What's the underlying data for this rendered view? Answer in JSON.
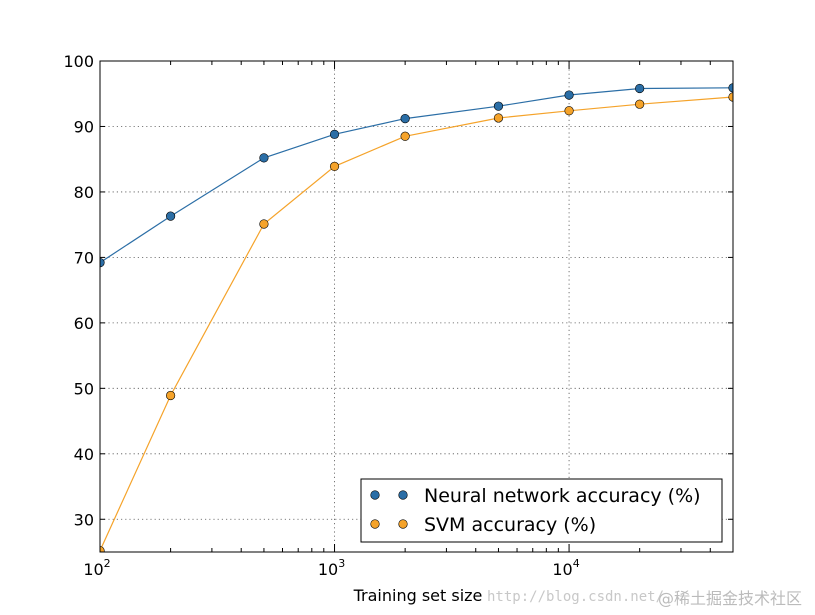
{
  "chart_data": {
    "type": "line",
    "title": "",
    "xlabel": "Training set size",
    "ylabel": "",
    "xscale": "log",
    "xlim": [
      100,
      50000
    ],
    "ylim": [
      25,
      100
    ],
    "x": [
      100,
      200,
      500,
      1000,
      2000,
      5000,
      10000,
      20000,
      50000
    ],
    "xticks": [
      {
        "value": 100,
        "base": "10",
        "exp": "2"
      },
      {
        "value": 1000,
        "base": "10",
        "exp": "3"
      },
      {
        "value": 10000,
        "base": "10",
        "exp": "4"
      }
    ],
    "yticks": [
      30,
      40,
      50,
      60,
      70,
      80,
      90,
      100
    ],
    "grid": true,
    "legend_position": "bottom-right",
    "series": [
      {
        "name": "Neural network accuracy (%)",
        "color": "#2b6ea6",
        "values": [
          69.2,
          76.3,
          85.2,
          88.8,
          91.2,
          93.1,
          94.8,
          95.8,
          95.9
        ]
      },
      {
        "name": "SVM accuracy (%)",
        "color": "#f5a32a",
        "values": [
          25.2,
          48.9,
          75.1,
          83.9,
          88.5,
          91.3,
          92.4,
          93.4,
          94.5
        ]
      }
    ]
  },
  "watermark": {
    "url": "http://blog.csdn.net/",
    "cn": "@稀土掘金技术社区"
  }
}
